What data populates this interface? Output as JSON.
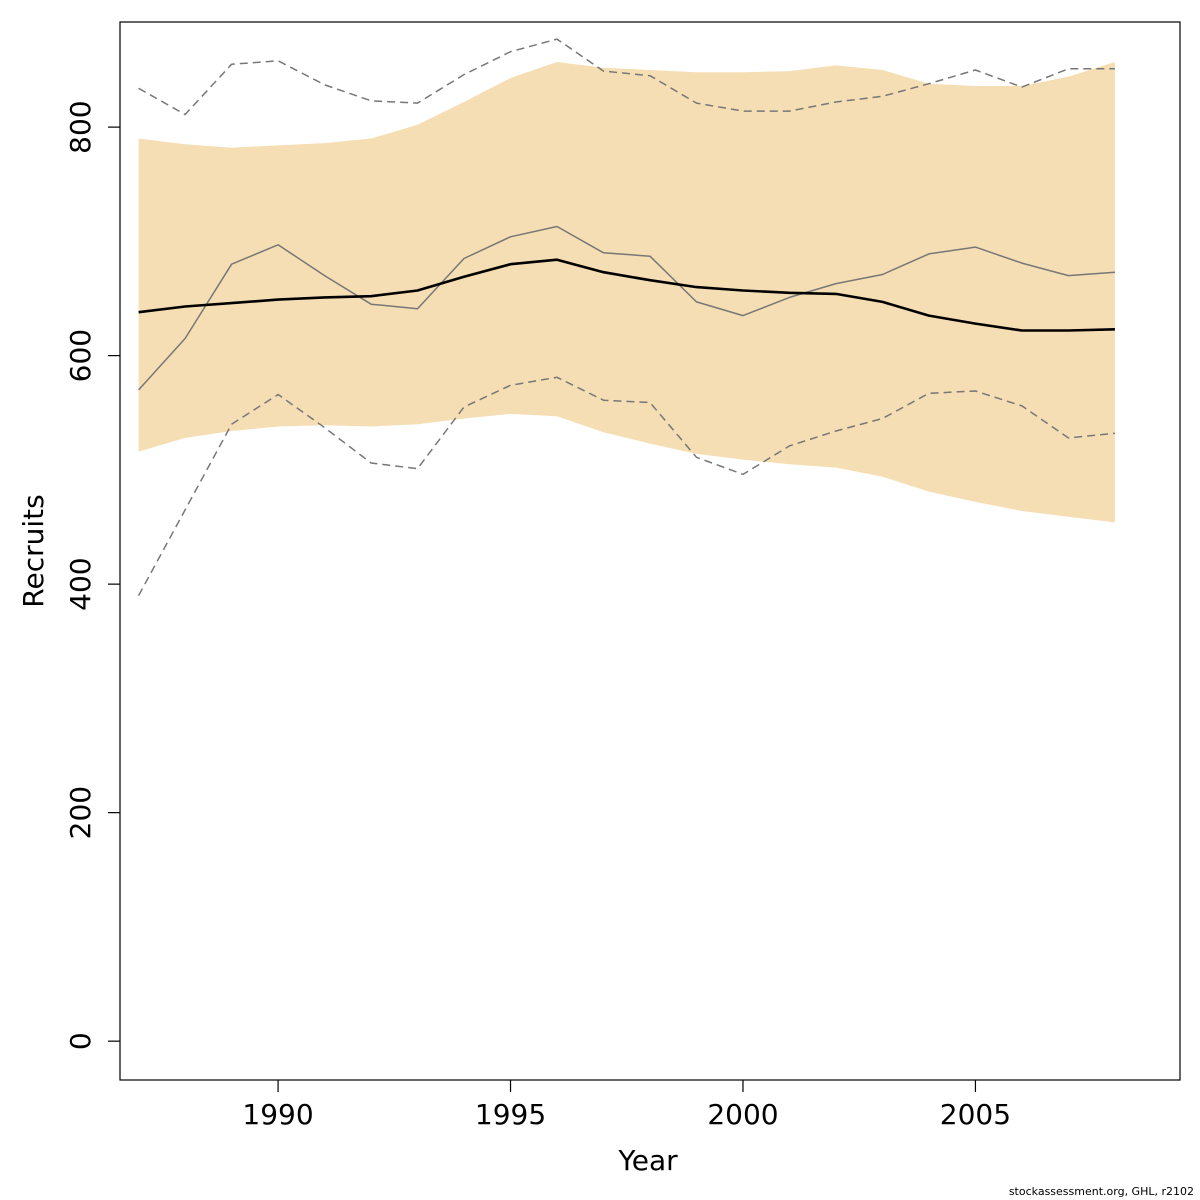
{
  "chart_data": {
    "type": "line",
    "xlabel": "Year",
    "ylabel": "Recruits",
    "xlim": [
      1986.6,
      2009.4
    ],
    "ylim": [
      -34,
      892
    ],
    "x_ticks": [
      1990,
      1995,
      2000,
      2005
    ],
    "y_ticks": [
      0,
      200,
      400,
      600,
      800
    ],
    "grid": false,
    "legend": "none",
    "x": [
      1987,
      1988,
      1989,
      1990,
      1991,
      1992,
      1993,
      1994,
      1995,
      1996,
      1997,
      1998,
      1999,
      2000,
      2001,
      2002,
      2003,
      2004,
      2005,
      2006,
      2007,
      2008
    ],
    "band": {
      "color": "#F5DEB3",
      "upper": [
        790,
        785,
        782,
        784,
        786,
        790,
        802,
        822,
        843,
        857,
        852,
        850,
        848,
        848,
        849,
        854,
        850,
        838,
        836,
        836,
        844,
        857
      ],
      "lower": [
        516,
        528,
        534,
        538,
        539,
        538,
        540,
        545,
        549,
        547,
        533,
        523,
        514,
        509,
        505,
        502,
        494,
        481,
        472,
        464,
        459,
        454
      ]
    },
    "series": [
      {
        "style": "solid-thick",
        "color": "#000000",
        "values": [
          638,
          643,
          646,
          649,
          651,
          652,
          657,
          669,
          680,
          684,
          673,
          666,
          660,
          657,
          655,
          654,
          647,
          635,
          628,
          622,
          622,
          623
        ]
      },
      {
        "style": "solid-thin",
        "color": "#777777",
        "values": [
          570,
          615,
          680,
          697,
          670,
          645,
          641,
          685,
          704,
          713,
          690,
          687,
          647,
          635,
          651,
          663,
          671,
          689,
          695,
          681,
          670,
          673
        ]
      },
      {
        "style": "dashed",
        "color": "#777777",
        "values": [
          834,
          811,
          855,
          858,
          837,
          823,
          821,
          846,
          866,
          877,
          849,
          845,
          821,
          814,
          814,
          822,
          827,
          838,
          850,
          835,
          851,
          851
        ]
      },
      {
        "style": "dashed",
        "color": "#777777",
        "values": [
          390,
          465,
          540,
          566,
          537,
          506,
          501,
          555,
          574,
          581,
          561,
          559,
          511,
          496,
          521,
          534,
          545,
          567,
          569,
          556,
          528,
          532
        ]
      }
    ]
  },
  "footer": "stockassessment.org, GHL, r2102"
}
